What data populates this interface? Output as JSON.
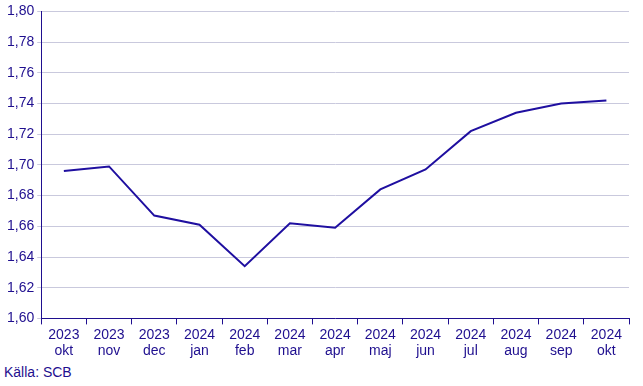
{
  "chart_data": {
    "type": "line",
    "categories": [
      "2023 okt",
      "2023 nov",
      "2023 dec",
      "2024 jan",
      "2024 feb",
      "2024 mar",
      "2024 apr",
      "2024 maj",
      "2024 jun",
      "2024 jul",
      "2024 aug",
      "2024 sep",
      "2024 okt"
    ],
    "values": [
      1.696,
      1.699,
      1.667,
      1.661,
      1.634,
      1.662,
      1.659,
      1.684,
      1.697,
      1.722,
      1.734,
      1.74,
      1.742
    ],
    "color": "#1f0fa0",
    "marker": "none",
    "ylim": [
      1.6,
      1.8
    ],
    "yticks": [
      {
        "value": 1.6,
        "label": "1,60"
      },
      {
        "value": 1.62,
        "label": "1,62"
      },
      {
        "value": 1.64,
        "label": "1,64"
      },
      {
        "value": 1.66,
        "label": "1,66"
      },
      {
        "value": 1.68,
        "label": "1,68"
      },
      {
        "value": 1.7,
        "label": "1,70"
      },
      {
        "value": 1.72,
        "label": "1,72"
      },
      {
        "value": 1.74,
        "label": "1,74"
      },
      {
        "value": 1.76,
        "label": "1,76"
      },
      {
        "value": 1.78,
        "label": "1,78"
      },
      {
        "value": 1.8,
        "label": "1,80"
      }
    ],
    "grid": true,
    "annotations": [
      "Källa: SCB"
    ]
  }
}
